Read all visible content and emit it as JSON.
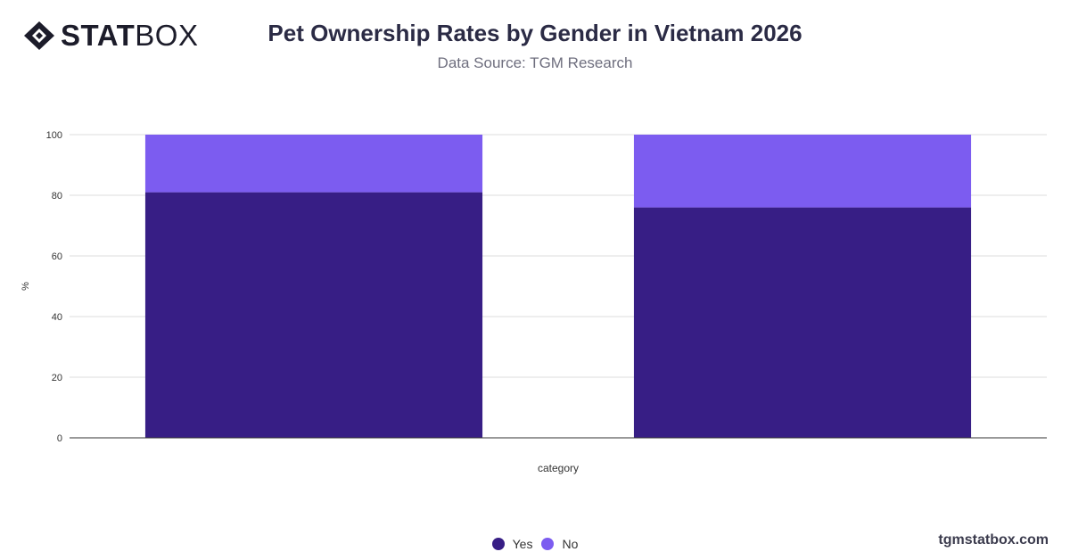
{
  "brand": {
    "logo_bold": "STAT",
    "logo_light": "BOX",
    "watermark": "tgmstatbox.com"
  },
  "header": {
    "title": "Pet Ownership Rates by Gender in Vietnam 2026",
    "subtitle": "Data Source: TGM Research"
  },
  "colors": {
    "yes": "#371e85",
    "no": "#7c5cf0",
    "grid": "#dddddd",
    "axis": "#333333"
  },
  "chart_data": {
    "type": "bar",
    "stacked": true,
    "categories": [
      "",
      ""
    ],
    "series": [
      {
        "name": "Yes",
        "values": [
          81,
          76
        ]
      },
      {
        "name": "No",
        "values": [
          19,
          24
        ]
      }
    ],
    "title": "Pet Ownership Rates by Gender in Vietnam 2026",
    "subtitle": "Data Source: TGM Research",
    "xlabel": "category",
    "ylabel": "%",
    "ylim": [
      0,
      100
    ],
    "yticks": [
      0,
      20,
      40,
      60,
      80,
      100
    ],
    "grid": true,
    "legend": "bottom"
  }
}
